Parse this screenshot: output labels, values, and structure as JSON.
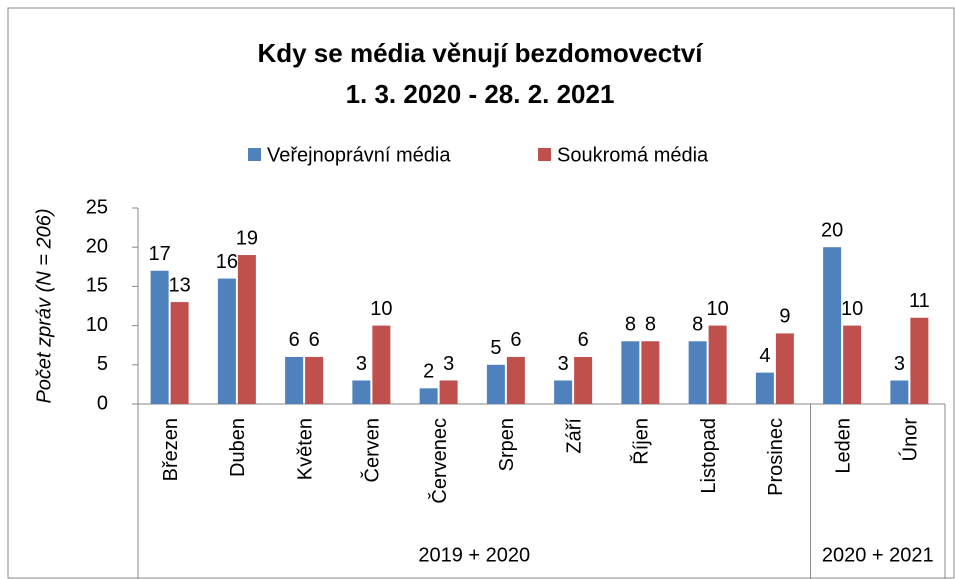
{
  "chart_data": {
    "type": "bar",
    "title": "Kdy se média věnují bezdomovectví",
    "subtitle": "1. 3. 2020 - 28. 2. 2021",
    "y_label": "Počet zpráv (N = 206)",
    "categories": [
      "Březen",
      "Duben",
      "Květen",
      "Červen",
      "Červenec",
      "Srpen",
      "Září",
      "Říjen",
      "Listopad",
      "Prosinec",
      "Leden",
      "Únor"
    ],
    "category_groups": [
      "2019 + 2020",
      "2019 + 2020",
      "2019 + 2020",
      "2019 + 2020",
      "2019 + 2020",
      "2019 + 2020",
      "2019 + 2020",
      "2019 + 2020",
      "2019 + 2020",
      "2019 + 2020",
      "2020 + 2021",
      "2020 + 2021"
    ],
    "series": [
      {
        "name": "Veřejnoprávní média",
        "color": "#4f81bd",
        "values": [
          17,
          16,
          6,
          3,
          2,
          5,
          3,
          8,
          8,
          4,
          20,
          3
        ]
      },
      {
        "name": "Soukromá média",
        "color": "#c0504d",
        "values": [
          13,
          19,
          6,
          10,
          3,
          6,
          6,
          8,
          10,
          9,
          10,
          11
        ]
      }
    ],
    "ylim": [
      0,
      25
    ],
    "yticks": [
      0,
      5,
      10,
      15,
      20,
      25
    ],
    "grid": false,
    "legend": "top"
  }
}
